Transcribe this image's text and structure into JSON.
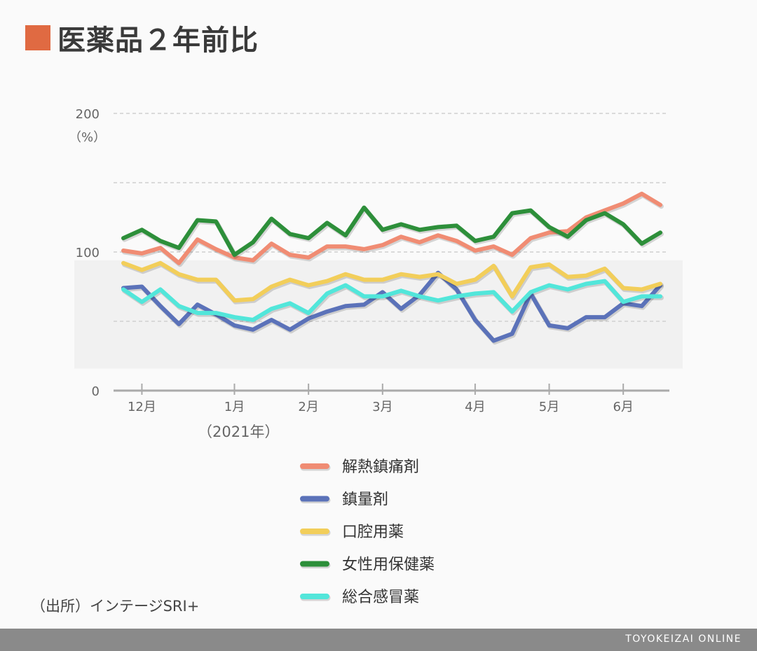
{
  "title": "医薬品２年前比",
  "source": "（出所）インテージSRI+",
  "brand": "TOYOKEIZAI ONLINE",
  "colors": {
    "title_mark": "#e06a42"
  },
  "chart_data": {
    "type": "line",
    "y_unit": "（%）",
    "year_note": "（2021年）",
    "ylim": [
      0,
      200
    ],
    "y_ticks": [
      {
        "value": 0,
        "label": "0"
      },
      {
        "value": 50,
        "label": ""
      },
      {
        "value": 100,
        "label": "100"
      },
      {
        "value": 150,
        "label": ""
      },
      {
        "value": 200,
        "label": "200"
      }
    ],
    "grid": true,
    "highlight_band": [
      16,
      94
    ],
    "x_count": 30,
    "x_ticks": [
      {
        "index": 1,
        "label": "12月"
      },
      {
        "index": 6,
        "label": "1月"
      },
      {
        "index": 10,
        "label": "2月"
      },
      {
        "index": 14,
        "label": "3月"
      },
      {
        "index": 19,
        "label": "4月"
      },
      {
        "index": 23,
        "label": "5月"
      },
      {
        "index": 27,
        "label": "6月"
      }
    ],
    "legend_position": "bottom",
    "series": [
      {
        "name": "解熱鎮痛剤",
        "color": "#f08c73",
        "values": [
          101,
          99,
          103,
          92,
          109,
          102,
          96,
          94,
          106,
          98,
          96,
          104,
          104,
          102,
          105,
          111,
          107,
          112,
          108,
          101,
          104,
          98,
          110,
          114,
          115,
          125,
          130,
          135,
          142,
          134
        ]
      },
      {
        "name": "鎮量剤",
        "color": "#5b72b9",
        "values": [
          74,
          75,
          61,
          48,
          62,
          55,
          47,
          44,
          51,
          44,
          52,
          57,
          61,
          62,
          71,
          59,
          69,
          85,
          73,
          51,
          36,
          41,
          70,
          47,
          45,
          53,
          53,
          63,
          61,
          76
        ]
      },
      {
        "name": "口腔用薬",
        "color": "#f2ce5a",
        "values": [
          92,
          87,
          92,
          84,
          80,
          80,
          65,
          66,
          75,
          80,
          76,
          79,
          84,
          80,
          80,
          84,
          82,
          84,
          77,
          80,
          90,
          68,
          89,
          91,
          82,
          83,
          88,
          74,
          73,
          77
        ]
      },
      {
        "name": "女性用保健薬",
        "color": "#2d8f3a",
        "values": [
          110,
          116,
          108,
          103,
          123,
          122,
          98,
          107,
          124,
          113,
          110,
          121,
          112,
          132,
          116,
          120,
          116,
          118,
          119,
          108,
          111,
          128,
          130,
          118,
          111,
          123,
          128,
          120,
          106,
          114
        ]
      },
      {
        "name": "総合感冒薬",
        "color": "#52e6da",
        "values": [
          73,
          64,
          73,
          61,
          56,
          56,
          53,
          51,
          59,
          63,
          56,
          70,
          76,
          68,
          68,
          72,
          68,
          65,
          68,
          70,
          71,
          57,
          71,
          76,
          73,
          77,
          79,
          64,
          68,
          68
        ]
      }
    ]
  }
}
